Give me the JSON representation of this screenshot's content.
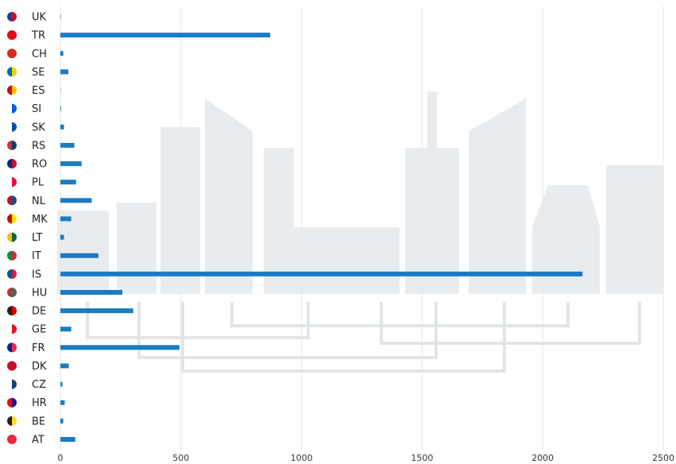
{
  "chart_data": {
    "type": "bar",
    "orientation": "horizontal",
    "categories": [
      "UK",
      "TR",
      "CH",
      "SE",
      "ES",
      "SI",
      "SK",
      "RS",
      "RO",
      "PL",
      "NL",
      "MK",
      "LT",
      "IT",
      "IS",
      "HU",
      "DE",
      "GE",
      "FR",
      "DK",
      "CZ",
      "HR",
      "BE",
      "AT"
    ],
    "values": [
      2,
      870,
      12,
      33,
      1,
      3,
      15,
      58,
      88,
      65,
      130,
      45,
      15,
      158,
      2165,
      257,
      302,
      45,
      494,
      35,
      8,
      18,
      12,
      62
    ],
    "color": "#1b7bc4",
    "xlim": [
      0,
      2500
    ],
    "xticks": [
      0,
      500,
      1000,
      1500,
      2000,
      2500
    ],
    "grid": true
  }
}
